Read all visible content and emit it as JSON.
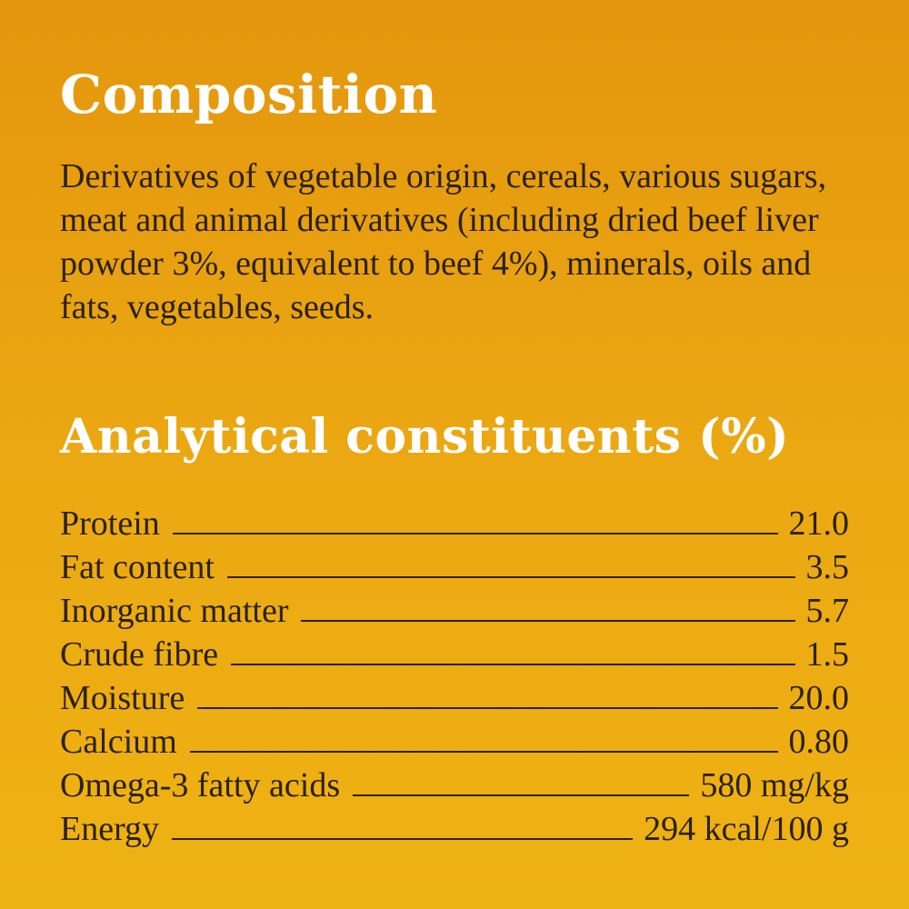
{
  "composition": {
    "heading": "Composition",
    "text": "Derivatives of vegetable origin, cereals, various sugars, meat and animal derivatives (including dried beef liver powder 3%, equivalent to beef 4%), minerals, oils and fats, vegetables, seeds."
  },
  "analytical": {
    "heading": "Analytical constituents (%)",
    "rows": [
      {
        "label": "Protein",
        "value": "21.0"
      },
      {
        "label": "Fat content",
        "value": "3.5"
      },
      {
        "label": "Inorganic matter",
        "value": "5.7"
      },
      {
        "label": "Crude fibre",
        "value": "1.5"
      },
      {
        "label": "Moisture",
        "value": "20.0"
      },
      {
        "label": "Calcium",
        "value": "0.80"
      },
      {
        "label": "Omega-3 fatty acids",
        "value": "580 mg/kg"
      },
      {
        "label": "Energy",
        "value": "294 kcal/100 g"
      }
    ]
  },
  "colors": {
    "background_top": "#e4960c",
    "background_bottom": "#efb213",
    "heading": "#ffffff",
    "body_text": "#2b2215"
  }
}
